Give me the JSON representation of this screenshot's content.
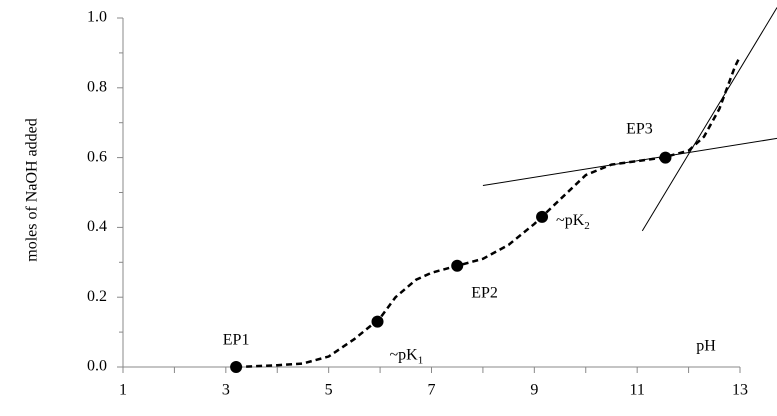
{
  "chart_data": {
    "type": "line",
    "y_label": "moles of NaOH added",
    "x_label": "pH",
    "xlim": [
      1,
      13
    ],
    "ylim": [
      0,
      1
    ],
    "xticks": [
      1,
      3,
      5,
      7,
      9,
      11,
      13
    ],
    "yticks": [
      {
        "value": 0,
        "label": "0.0"
      },
      0.2,
      0.4,
      0.6,
      0.8,
      {
        "value": 1,
        "label": "1.0"
      }
    ],
    "curve": {
      "color": "#000000",
      "dashed": true,
      "x": [
        3.2,
        4,
        4.5,
        5,
        5.5,
        6,
        6.3,
        6.7,
        7,
        7.5,
        8,
        8.5,
        9,
        9.5,
        10,
        10.5,
        11,
        11.5,
        12,
        12.3,
        12.6,
        12.9,
        13
      ],
      "y": [
        0,
        0.005,
        0.01,
        0.03,
        0.08,
        0.14,
        0.2,
        0.25,
        0.27,
        0.29,
        0.31,
        0.35,
        0.41,
        0.48,
        0.55,
        0.58,
        0.59,
        0.6,
        0.62,
        0.66,
        0.74,
        0.86,
        0.89
      ]
    },
    "points": {
      "color": "#000000",
      "x": [
        3.2,
        5.95,
        7.5,
        9.15,
        11.55
      ],
      "y": [
        0,
        0.13,
        0.29,
        0.43,
        0.6
      ],
      "labels": [
        "EP1",
        {
          "text": "~pK",
          "sub": "1"
        },
        "EP2",
        {
          "text": "~pK",
          "sub": "2"
        },
        "EP3"
      ]
    },
    "tangents": [
      {
        "x": [
          8,
          13.72
        ],
        "y": [
          0.52,
          0.655
        ]
      },
      {
        "x": [
          11.1,
          13.72
        ],
        "y": [
          0.39,
          1.03
        ]
      }
    ]
  }
}
